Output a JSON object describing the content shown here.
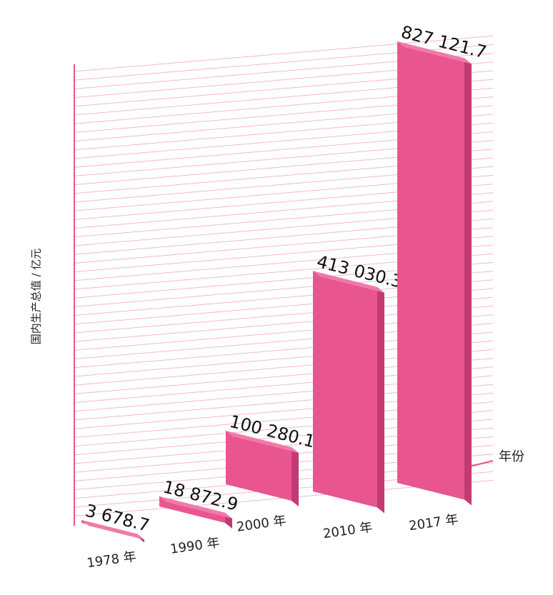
{
  "chart_data": {
    "type": "bar",
    "title": "",
    "ylabel": "国内生产总值 / 亿元",
    "xlabel": "年份",
    "categories": [
      "1978 年",
      "1990 年",
      "2000 年",
      "2010 年",
      "2017 年"
    ],
    "values": [
      3678.7,
      18872.9,
      100280.1,
      413030.3,
      827121.7
    ],
    "value_labels": [
      "3 678.7",
      "18 872.9",
      "100 280.1",
      "413 030.3",
      "827 121.7"
    ],
    "ylim": [
      0,
      827121.7
    ],
    "grid": true,
    "legend": "none",
    "bar_color": "#e8558f",
    "bar_side_color": "#c33a73",
    "bar_top_color": "#f07aa8",
    "grid_color": "#f4b7cf",
    "axis_color": "#e8558f"
  }
}
